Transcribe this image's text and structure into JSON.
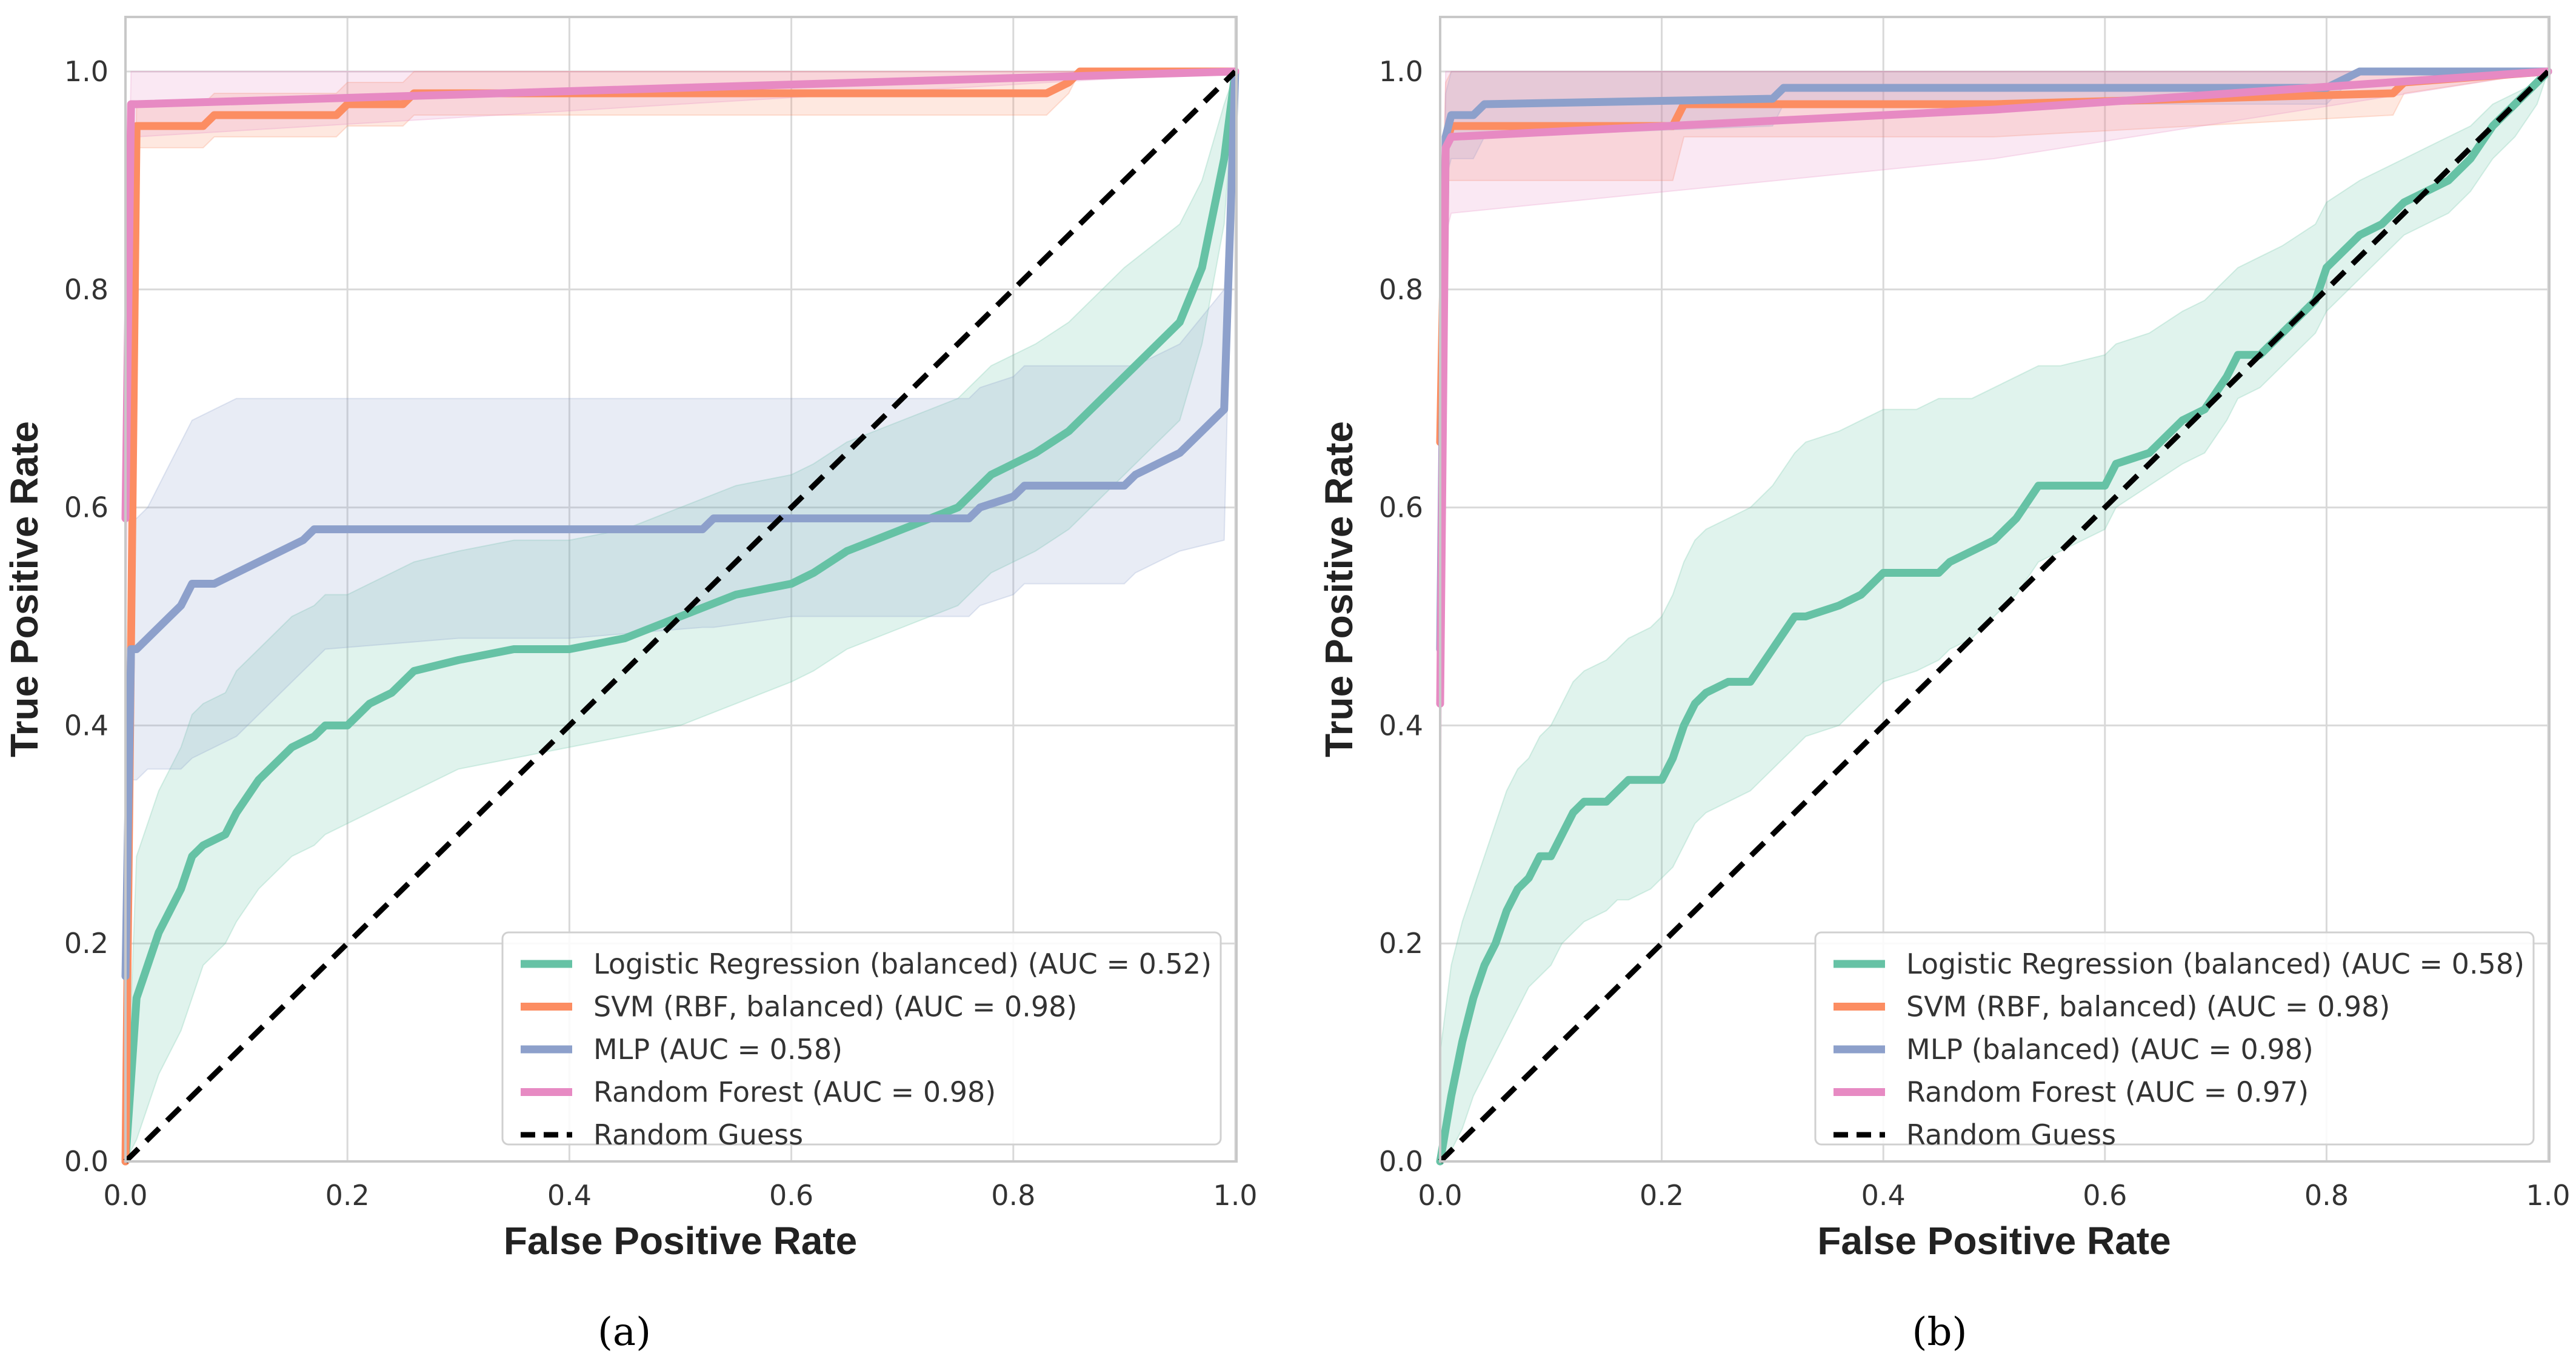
{
  "chart_data": [
    {
      "type": "line",
      "caption": "(a)",
      "xlabel": "False Positive Rate",
      "ylabel": "True Positive Rate",
      "xlim": [
        0,
        1
      ],
      "ylim": [
        0,
        1
      ],
      "ticks": [
        "0.0",
        "0.2",
        "0.4",
        "0.6",
        "0.8",
        "1.0"
      ],
      "grid": true,
      "legend_position": "bottom-right",
      "series": [
        {
          "name": "Logistic Regression (balanced) (AUC = 0.52)",
          "color": "#66c2a5",
          "x": [
            0,
            0.01,
            0.02,
            0.03,
            0.05,
            0.06,
            0.07,
            0.09,
            0.1,
            0.12,
            0.14,
            0.15,
            0.17,
            0.18,
            0.2,
            0.22,
            0.24,
            0.26,
            0.3,
            0.35,
            0.4,
            0.45,
            0.5,
            0.55,
            0.6,
            0.62,
            0.65,
            0.7,
            0.75,
            0.78,
            0.82,
            0.85,
            0.88,
            0.9,
            0.95,
            0.97,
            0.99,
            1.0
          ],
          "y": [
            0,
            0.15,
            0.18,
            0.21,
            0.25,
            0.28,
            0.29,
            0.3,
            0.32,
            0.35,
            0.37,
            0.38,
            0.39,
            0.4,
            0.4,
            0.42,
            0.43,
            0.45,
            0.46,
            0.47,
            0.47,
            0.48,
            0.5,
            0.52,
            0.53,
            0.54,
            0.56,
            0.58,
            0.6,
            0.63,
            0.65,
            0.67,
            0.7,
            0.72,
            0.77,
            0.82,
            0.92,
            1.0
          ],
          "band_lower": [
            0,
            0.02,
            0.05,
            0.08,
            0.12,
            0.15,
            0.18,
            0.2,
            0.22,
            0.25,
            0.27,
            0.28,
            0.29,
            0.3,
            0.31,
            0.32,
            0.33,
            0.34,
            0.36,
            0.37,
            0.38,
            0.39,
            0.4,
            0.42,
            0.44,
            0.45,
            0.47,
            0.49,
            0.51,
            0.54,
            0.56,
            0.58,
            0.61,
            0.63,
            0.68,
            0.75,
            0.86,
            1.0
          ],
          "band_upper": [
            0,
            0.28,
            0.31,
            0.34,
            0.38,
            0.41,
            0.42,
            0.43,
            0.45,
            0.47,
            0.49,
            0.5,
            0.51,
            0.52,
            0.52,
            0.53,
            0.54,
            0.55,
            0.56,
            0.57,
            0.57,
            0.58,
            0.6,
            0.62,
            0.63,
            0.64,
            0.66,
            0.68,
            0.7,
            0.73,
            0.75,
            0.77,
            0.8,
            0.82,
            0.86,
            0.9,
            0.97,
            1.0
          ]
        },
        {
          "name": "SVM (RBF, balanced) (AUC = 0.98)",
          "color": "#fc8d62",
          "x": [
            0,
            0.01,
            0.04,
            0.07,
            0.08,
            0.1,
            0.19,
            0.2,
            0.25,
            0.26,
            0.4,
            0.6,
            0.83,
            0.85,
            0.86,
            1.0
          ],
          "y": [
            0,
            0.95,
            0.95,
            0.95,
            0.96,
            0.96,
            0.96,
            0.97,
            0.97,
            0.98,
            0.98,
            0.98,
            0.98,
            0.99,
            1.0,
            1.0
          ],
          "band_lower": [
            0,
            0.93,
            0.93,
            0.93,
            0.94,
            0.94,
            0.94,
            0.95,
            0.95,
            0.96,
            0.96,
            0.96,
            0.96,
            0.98,
            1.0,
            1.0
          ],
          "band_upper": [
            0,
            0.97,
            0.97,
            0.97,
            0.98,
            0.98,
            0.98,
            0.99,
            0.99,
            1.0,
            1.0,
            1.0,
            1.0,
            1.0,
            1.0,
            1.0
          ]
        },
        {
          "name": "MLP (AUC = 0.58)",
          "color": "#8da0cb",
          "x": [
            0,
            0.005,
            0.01,
            0.02,
            0.03,
            0.04,
            0.05,
            0.06,
            0.08,
            0.1,
            0.12,
            0.14,
            0.16,
            0.17,
            0.18,
            0.3,
            0.4,
            0.52,
            0.53,
            0.6,
            0.7,
            0.76,
            0.77,
            0.8,
            0.81,
            0.9,
            0.91,
            0.93,
            0.95,
            0.99,
            1.0
          ],
          "y": [
            0.17,
            0.47,
            0.47,
            0.48,
            0.49,
            0.5,
            0.51,
            0.53,
            0.53,
            0.54,
            0.55,
            0.56,
            0.57,
            0.58,
            0.58,
            0.58,
            0.58,
            0.58,
            0.59,
            0.59,
            0.59,
            0.59,
            0.6,
            0.61,
            0.62,
            0.62,
            0.63,
            0.64,
            0.65,
            0.69,
            1.0
          ],
          "band_lower": [
            0.1,
            0.35,
            0.35,
            0.36,
            0.36,
            0.36,
            0.36,
            0.37,
            0.38,
            0.39,
            0.41,
            0.43,
            0.45,
            0.46,
            0.47,
            0.48,
            0.48,
            0.49,
            0.49,
            0.5,
            0.5,
            0.5,
            0.51,
            0.52,
            0.53,
            0.53,
            0.54,
            0.55,
            0.56,
            0.57,
            1.0
          ],
          "band_upper": [
            0.24,
            0.59,
            0.59,
            0.6,
            0.62,
            0.64,
            0.66,
            0.68,
            0.69,
            0.7,
            0.7,
            0.7,
            0.7,
            0.7,
            0.7,
            0.7,
            0.7,
            0.7,
            0.7,
            0.7,
            0.7,
            0.7,
            0.71,
            0.72,
            0.73,
            0.73,
            0.73,
            0.74,
            0.75,
            0.8,
            1.0
          ]
        },
        {
          "name": "Random Forest (AUC = 0.98)",
          "color": "#e78ac3",
          "x": [
            0,
            0.005,
            0.01,
            0.5,
            1.0
          ],
          "y": [
            0.59,
            0.97,
            0.97,
            0.985,
            1.0
          ],
          "band_lower": [
            0.45,
            0.94,
            0.94,
            0.97,
            1.0
          ],
          "band_upper": [
            0.72,
            1.0,
            1.0,
            1.0,
            1.0
          ]
        },
        {
          "name": "Random Guess",
          "color": "#000000",
          "dashed": true,
          "x": [
            0,
            1
          ],
          "y": [
            0,
            1
          ]
        }
      ]
    },
    {
      "type": "line",
      "caption": "(b)",
      "xlabel": "False Positive Rate",
      "ylabel": "True Positive Rate",
      "xlim": [
        0,
        1
      ],
      "ylim": [
        0,
        1
      ],
      "ticks": [
        "0.0",
        "0.2",
        "0.4",
        "0.6",
        "0.8",
        "1.0"
      ],
      "grid": true,
      "legend_position": "bottom-right",
      "series": [
        {
          "name": "Logistic Regression (balanced) (AUC = 0.58)",
          "color": "#66c2a5",
          "x": [
            0,
            0.01,
            0.02,
            0.03,
            0.04,
            0.05,
            0.06,
            0.07,
            0.08,
            0.09,
            0.1,
            0.11,
            0.12,
            0.13,
            0.15,
            0.16,
            0.17,
            0.19,
            0.2,
            0.21,
            0.22,
            0.23,
            0.24,
            0.26,
            0.28,
            0.3,
            0.32,
            0.33,
            0.36,
            0.38,
            0.4,
            0.43,
            0.45,
            0.46,
            0.48,
            0.5,
            0.52,
            0.54,
            0.56,
            0.6,
            0.61,
            0.64,
            0.67,
            0.69,
            0.71,
            0.72,
            0.74,
            0.76,
            0.79,
            0.8,
            0.83,
            0.85,
            0.87,
            0.89,
            0.91,
            0.93,
            0.95,
            0.97,
            0.99,
            1.0
          ],
          "y": [
            0,
            0.06,
            0.11,
            0.15,
            0.18,
            0.2,
            0.23,
            0.25,
            0.26,
            0.28,
            0.28,
            0.3,
            0.32,
            0.33,
            0.33,
            0.34,
            0.35,
            0.35,
            0.35,
            0.37,
            0.4,
            0.42,
            0.43,
            0.44,
            0.44,
            0.47,
            0.5,
            0.5,
            0.51,
            0.52,
            0.54,
            0.54,
            0.54,
            0.55,
            0.56,
            0.57,
            0.59,
            0.62,
            0.62,
            0.62,
            0.64,
            0.65,
            0.68,
            0.69,
            0.72,
            0.74,
            0.74,
            0.76,
            0.79,
            0.82,
            0.85,
            0.86,
            0.88,
            0.89,
            0.9,
            0.92,
            0.95,
            0.97,
            0.99,
            1.0
          ],
          "band_lower": [
            0,
            0.01,
            0.03,
            0.06,
            0.08,
            0.1,
            0.12,
            0.14,
            0.16,
            0.17,
            0.18,
            0.2,
            0.21,
            0.22,
            0.23,
            0.24,
            0.24,
            0.25,
            0.26,
            0.27,
            0.29,
            0.31,
            0.32,
            0.33,
            0.34,
            0.36,
            0.38,
            0.39,
            0.4,
            0.42,
            0.44,
            0.45,
            0.46,
            0.47,
            0.48,
            0.5,
            0.52,
            0.55,
            0.56,
            0.58,
            0.6,
            0.62,
            0.64,
            0.65,
            0.68,
            0.7,
            0.71,
            0.73,
            0.76,
            0.78,
            0.81,
            0.83,
            0.85,
            0.86,
            0.87,
            0.89,
            0.92,
            0.94,
            0.97,
            1.0
          ],
          "band_upper": [
            0.1,
            0.18,
            0.22,
            0.25,
            0.28,
            0.31,
            0.34,
            0.36,
            0.37,
            0.39,
            0.4,
            0.42,
            0.44,
            0.45,
            0.46,
            0.47,
            0.48,
            0.49,
            0.5,
            0.52,
            0.55,
            0.57,
            0.58,
            0.59,
            0.6,
            0.62,
            0.65,
            0.66,
            0.67,
            0.68,
            0.69,
            0.69,
            0.7,
            0.7,
            0.7,
            0.71,
            0.72,
            0.73,
            0.73,
            0.74,
            0.75,
            0.76,
            0.78,
            0.79,
            0.81,
            0.82,
            0.83,
            0.84,
            0.86,
            0.88,
            0.9,
            0.91,
            0.92,
            0.93,
            0.94,
            0.95,
            0.97,
            0.98,
            0.99,
            1.0
          ]
        },
        {
          "name": "SVM (RBF, balanced) (AUC = 0.98)",
          "color": "#fc8d62",
          "x": [
            0,
            0.005,
            0.01,
            0.21,
            0.22,
            0.5,
            0.86,
            0.87,
            1.0
          ],
          "y": [
            0.66,
            0.93,
            0.95,
            0.95,
            0.97,
            0.97,
            0.98,
            0.99,
            1.0
          ],
          "band_lower": [
            0.55,
            0.9,
            0.9,
            0.9,
            0.94,
            0.94,
            0.96,
            0.98,
            1.0
          ],
          "band_upper": [
            0.8,
            0.99,
            1.0,
            1.0,
            1.0,
            1.0,
            1.0,
            1.0,
            1.0
          ]
        },
        {
          "name": "MLP (balanced) (AUC = 0.98)",
          "color": "#8da0cb",
          "x": [
            0,
            0.005,
            0.01,
            0.03,
            0.04,
            0.3,
            0.31,
            0.8,
            0.83,
            1.0
          ],
          "y": [
            0.47,
            0.94,
            0.96,
            0.96,
            0.97,
            0.975,
            0.985,
            0.985,
            1.0,
            1.0
          ],
          "band_lower": [
            0.35,
            0.9,
            0.92,
            0.92,
            0.94,
            0.95,
            0.97,
            0.97,
            1.0,
            1.0
          ],
          "band_upper": [
            0.6,
            0.98,
            1.0,
            1.0,
            1.0,
            1.0,
            1.0,
            1.0,
            1.0,
            1.0
          ]
        },
        {
          "name": "Random Forest (AUC = 0.97)",
          "color": "#e78ac3",
          "x": [
            0,
            0.005,
            0.01,
            0.5,
            1.0
          ],
          "y": [
            0.42,
            0.93,
            0.94,
            0.965,
            1.0
          ],
          "band_lower": [
            0.3,
            0.85,
            0.87,
            0.92,
            1.0
          ],
          "band_upper": [
            0.55,
            1.0,
            1.0,
            1.0,
            1.0
          ]
        },
        {
          "name": "Random Guess",
          "color": "#000000",
          "dashed": true,
          "x": [
            0,
            1
          ],
          "y": [
            0,
            1
          ]
        }
      ]
    }
  ]
}
